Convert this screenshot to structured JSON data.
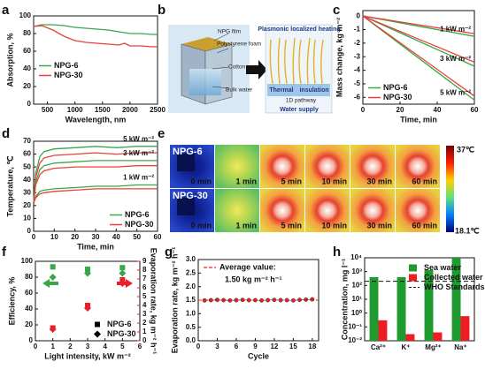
{
  "chart_data": [
    {
      "type": "line",
      "panel": "a",
      "x_label": "Wavelength, nm",
      "y_label": "Absorption, %",
      "x": [
        250,
        400,
        600,
        800,
        1000,
        1200,
        1400,
        1600,
        1800,
        1900,
        2000,
        2200,
        2400,
        2500
      ],
      "series": [
        {
          "name": "NPG-6",
          "color": "#3aa64a",
          "values": [
            88,
            90,
            90,
            89,
            87,
            86,
            85,
            84,
            82,
            81,
            80,
            80,
            79,
            79
          ]
        },
        {
          "name": "NPG-30",
          "color": "#e8403a",
          "values": [
            88,
            89,
            84,
            77,
            72,
            70,
            69,
            68,
            67,
            69,
            66,
            66,
            65,
            65
          ]
        }
      ],
      "xlim": [
        250,
        2500
      ],
      "xticks": [
        500,
        1000,
        1500,
        2000,
        2500
      ],
      "ylim": [
        0,
        100
      ],
      "yticks": [
        0,
        20,
        40,
        60,
        80,
        100
      ],
      "legend": "middle left"
    },
    {
      "type": "line",
      "panel": "c",
      "x_label": "Time, min",
      "y_label": "Mass change, kg m⁻²",
      "x": [
        0,
        30,
        60
      ],
      "series": [
        {
          "name": "NPG-6",
          "color": "#3aa64a",
          "values": [
            0,
            -0.75,
            -1.5
          ]
        },
        {
          "name": "NPG-30",
          "color": "#e8403a",
          "values": [
            0,
            -0.65,
            -1.3
          ]
        },
        {
          "name": "NPG-6",
          "color": "#3aa64a",
          "values": [
            0,
            -1.85,
            -3.7
          ]
        },
        {
          "name": "NPG-30",
          "color": "#e8403a",
          "values": [
            0,
            -1.7,
            -3.4
          ]
        },
        {
          "name": "NPG-6",
          "color": "#3aa64a",
          "values": [
            0,
            -3.1,
            -6.2
          ]
        },
        {
          "name": "NPG-30",
          "color": "#e8403a",
          "values": [
            0,
            -2.95,
            -5.9
          ]
        }
      ],
      "annotations": [
        "1 kW m⁻²",
        "3 kW m⁻²",
        "5 kW m⁻²"
      ],
      "xlim": [
        0,
        60
      ],
      "xticks": [
        0,
        20,
        40,
        60
      ],
      "ylim": [
        -6.5,
        0.4
      ],
      "yticks": [
        0,
        -1,
        -2,
        -3,
        -4,
        -5,
        -6
      ],
      "legend": "lower left"
    },
    {
      "type": "line",
      "panel": "d",
      "x_label": "Time, min",
      "y_label": "Temperature, ℃",
      "x": [
        0,
        1,
        3,
        5,
        10,
        20,
        30,
        40,
        50,
        60
      ],
      "series": [
        {
          "name": "NPG-6",
          "color": "#3aa64a",
          "values": [
            22,
            45,
            58,
            62,
            64,
            65,
            66,
            65,
            66,
            66
          ]
        },
        {
          "name": "NPG-30",
          "color": "#e8403a",
          "values": [
            22,
            42,
            53,
            57,
            59,
            60,
            61,
            60,
            61,
            61
          ]
        },
        {
          "name": "NPG-6",
          "color": "#3aa64a",
          "values": [
            22,
            38,
            48,
            51,
            53,
            54,
            55,
            55,
            55,
            55
          ]
        },
        {
          "name": "NPG-30",
          "color": "#e8403a",
          "values": [
            22,
            36,
            44,
            47,
            49,
            50,
            50,
            50,
            51,
            51
          ]
        },
        {
          "name": "NPG-6",
          "color": "#3aa64a",
          "values": [
            22,
            27,
            31,
            32,
            33,
            34,
            35,
            35,
            36,
            36
          ]
        },
        {
          "name": "NPG-30",
          "color": "#e8403a",
          "values": [
            22,
            26,
            29,
            30,
            31,
            32,
            33,
            33,
            33,
            33
          ]
        }
      ],
      "annotations": [
        "5 kW m⁻²",
        "3 kW m⁻²",
        "1 kW m⁻²"
      ],
      "xlim": [
        0,
        60
      ],
      "xticks": [
        0,
        10,
        20,
        30,
        40,
        50,
        60
      ],
      "ylim": [
        0,
        70
      ],
      "yticks": [
        0,
        10,
        20,
        30,
        40,
        50,
        60,
        70
      ],
      "legend": "lower right"
    },
    {
      "type": "scatter",
      "panel": "f",
      "x_label": "Light intensity, kW m⁻²",
      "y_label": "Efficiency, %",
      "y2_label": "Evaporation rate, kg m⁻² h⁻¹",
      "x": [
        1,
        3,
        5
      ],
      "series": [
        {
          "name": "NPG-6",
          "color": "#3aa64a",
          "marker": "square",
          "values": [
            93,
            90,
            92
          ]
        },
        {
          "name": "NPG-30",
          "color": "#3aa64a",
          "marker": "diamond",
          "values": [
            80,
            85,
            85
          ]
        },
        {
          "name": "NPG-6",
          "color": "#e8202a",
          "marker": "square",
          "axis": "y2",
          "values": [
            1.45,
            4.0,
            6.9
          ]
        },
        {
          "name": "NPG-30",
          "color": "#e8202a",
          "marker": "diamond",
          "axis": "y2",
          "values": [
            1.3,
            3.7,
            6.5
          ]
        }
      ],
      "xlim": [
        0,
        6
      ],
      "xticks": [
        0,
        1,
        2,
        3,
        4,
        5,
        6
      ],
      "ylim": [
        0,
        100
      ],
      "yticks": [
        0,
        20,
        40,
        60,
        80,
        100
      ],
      "y2lim": [
        0,
        9
      ],
      "y2ticks": [
        0,
        1,
        2,
        3,
        4,
        5,
        6,
        7,
        8,
        9
      ],
      "legend": "lower right",
      "legend_color": "#000000"
    },
    {
      "type": "scatter",
      "panel": "g",
      "x_label": "Cycle",
      "y_label": "Evaporation rate, kg m⁻² h⁻¹",
      "x": [
        1,
        2,
        3,
        4,
        5,
        6,
        7,
        8,
        9,
        10,
        11,
        12,
        13,
        14,
        15,
        16,
        17,
        18
      ],
      "series": [
        {
          "color": "#e8202a",
          "marker": "circle",
          "values": [
            1.49,
            1.5,
            1.51,
            1.5,
            1.49,
            1.5,
            1.51,
            1.5,
            1.5,
            1.49,
            1.5,
            1.51,
            1.5,
            1.5,
            1.49,
            1.51,
            1.52,
            1.53
          ]
        }
      ],
      "average": {
        "name": "Average value:",
        "value": 1.5,
        "value_label": "1.50 kg m⁻² h⁻¹",
        "color": "#e8202a"
      },
      "xlim": [
        0,
        19
      ],
      "xticks": [
        0,
        3,
        6,
        9,
        12,
        15,
        18
      ],
      "ylim": [
        0,
        3
      ],
      "yticks": [
        {
          "value": 0,
          "label": "0.0"
        },
        0.5,
        {
          "value": 1,
          "label": "1.0"
        },
        1.5,
        {
          "value": 2,
          "label": "2.0"
        },
        2.5,
        {
          "value": 3,
          "label": "3.0"
        }
      ],
      "legend": "upper left"
    },
    {
      "type": "bar",
      "panel": "h",
      "y_label": "Concentration, mg l⁻¹",
      "log_y": true,
      "categories": [
        "Ca²⁺",
        "K⁺",
        "Mg²⁺",
        "Na⁺"
      ],
      "series": [
        {
          "name": "Sea water",
          "color": "#1f9a2e",
          "values": [
            400,
            400,
            1300,
            10000
          ]
        },
        {
          "name": "Collected water",
          "color": "#ee1c24",
          "values": [
            0.3,
            0.03,
            0.04,
            0.6
          ]
        }
      ],
      "hline": {
        "name": "WHO Standards",
        "value": 200
      },
      "ylim": [
        0.01,
        10000
      ],
      "yticks": [
        {
          "value": 0.01,
          "label": "10⁻²"
        },
        {
          "value": 0.1,
          "label": "10⁻¹"
        },
        {
          "value": 1,
          "label": "10⁰"
        },
        {
          "value": 10,
          "label": "10¹"
        },
        {
          "value": 100,
          "label": "10²"
        },
        {
          "value": 1000,
          "label": "10³"
        },
        {
          "value": 10000,
          "label": "10⁴"
        }
      ],
      "legend": "upper right"
    }
  ],
  "diagram": {
    "panel": "b",
    "labels": [
      "NPG film",
      "Polystyrene foam",
      "Cotton",
      "Bulk water",
      "Plasmonic localized heating",
      "Thermal",
      "insulation",
      "1D pathway",
      "Water supply"
    ]
  },
  "thermal_images": {
    "panel": "e",
    "rows": [
      "NPG-6",
      "NPG-30"
    ],
    "times": [
      "0 min",
      "1 min",
      "5 min",
      "10 min",
      "30 min",
      "60 min"
    ],
    "colorbar_max": "37℃",
    "colorbar_min": "18.1℃"
  }
}
